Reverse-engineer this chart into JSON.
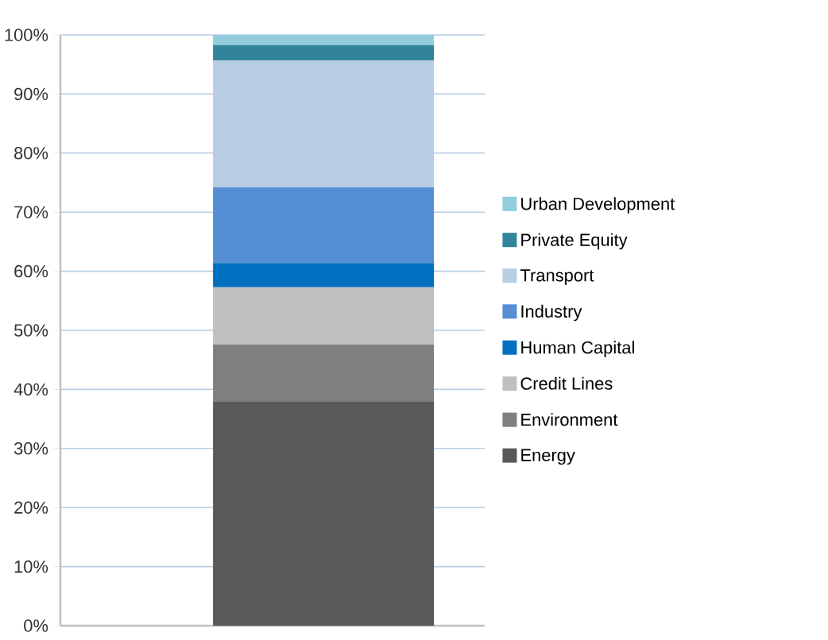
{
  "chart_data": {
    "type": "bar",
    "stacked": true,
    "categories": [
      null
    ],
    "series": [
      {
        "name": "Energy",
        "color": "#595959",
        "values": [
          37.9
        ]
      },
      {
        "name": "Environment",
        "color": "#7f7f7f",
        "values": [
          9.7
        ]
      },
      {
        "name": "Credit Lines",
        "color": "#bfbfbf",
        "values": [
          9.7
        ]
      },
      {
        "name": "Human Capital",
        "color": "#0070c0",
        "values": [
          4.1
        ]
      },
      {
        "name": "Industry",
        "color": "#558ed5",
        "values": [
          12.8
        ]
      },
      {
        "name": "Transport",
        "color": "#b9cde5",
        "values": [
          21.5
        ]
      },
      {
        "name": "Private Equity",
        "color": "#31849b",
        "values": [
          2.6
        ]
      },
      {
        "name": "Urban Development",
        "color": "#93cddd",
        "values": [
          1.7
        ]
      }
    ],
    "ylim": [
      0,
      100
    ],
    "yticks": [
      {
        "value": 0,
        "label": "0%"
      },
      {
        "value": 10,
        "label": "10%"
      },
      {
        "value": 20,
        "label": "20%"
      },
      {
        "value": 30,
        "label": "30%"
      },
      {
        "value": 40,
        "label": "40%"
      },
      {
        "value": 50,
        "label": "50%"
      },
      {
        "value": 60,
        "label": "60%"
      },
      {
        "value": 70,
        "label": "70%"
      },
      {
        "value": 80,
        "label": "80%"
      },
      {
        "value": 90,
        "label": "90%"
      },
      {
        "value": 100,
        "label": "100%"
      }
    ],
    "grid": "y",
    "legend": "right"
  }
}
